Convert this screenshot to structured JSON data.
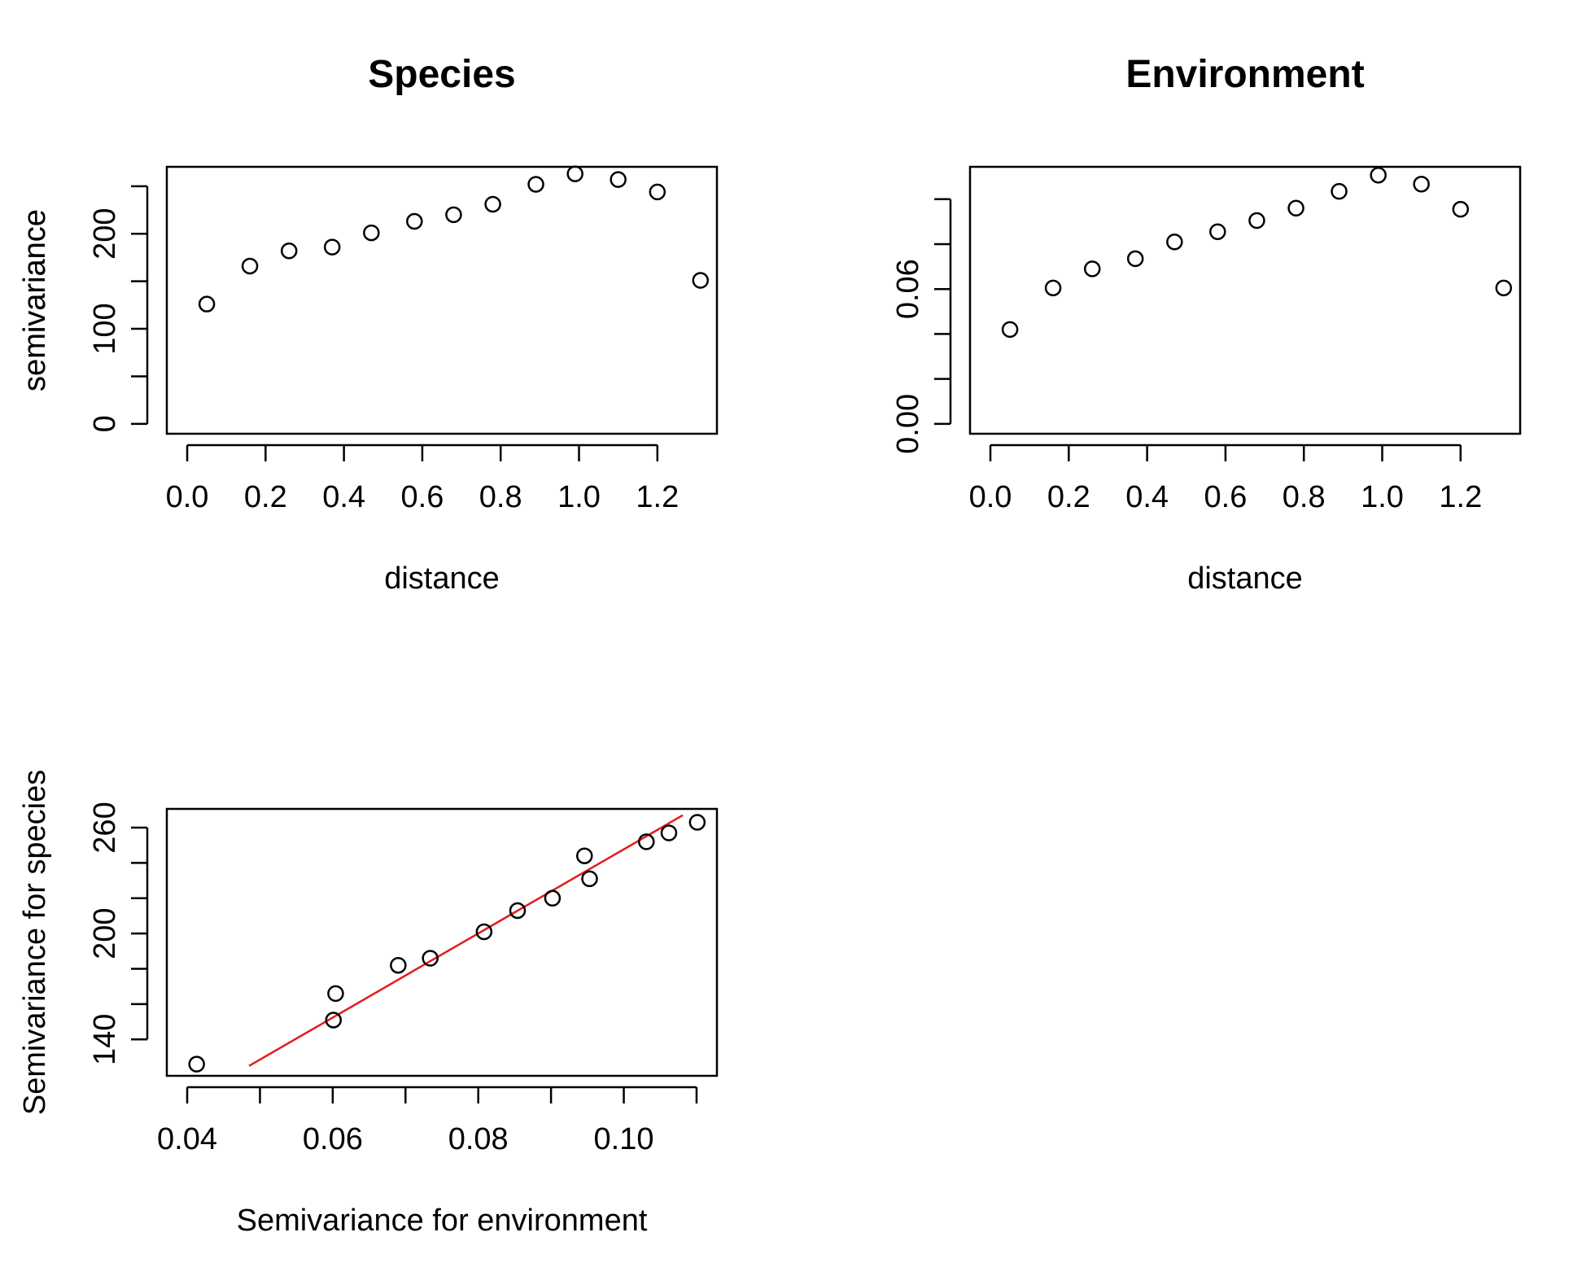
{
  "colors": {
    "ink": "#000000",
    "fit": "#e41a1c"
  },
  "chart_data": [
    {
      "id": "species",
      "type": "scatter",
      "title": "Species",
      "xlabel": "distance",
      "ylabel": "semivariance",
      "xlim": [
        0.0,
        1.3
      ],
      "ylim": [
        0,
        260
      ],
      "x_ticks": [
        0.0,
        0.2,
        0.4,
        0.6,
        0.8,
        1.0,
        1.2
      ],
      "x_tick_labels": [
        "0.0",
        "0.2",
        "0.4",
        "0.6",
        "0.8",
        "1.0",
        "1.2"
      ],
      "y_ticks": [
        0,
        50,
        100,
        150,
        200,
        250
      ],
      "y_tick_labels": [
        "0",
        "",
        "100",
        "",
        "200",
        ""
      ],
      "grid": false,
      "points": [
        {
          "x": 0.05,
          "y": 126
        },
        {
          "x": 0.16,
          "y": 166
        },
        {
          "x": 0.26,
          "y": 182
        },
        {
          "x": 0.37,
          "y": 186
        },
        {
          "x": 0.47,
          "y": 201
        },
        {
          "x": 0.58,
          "y": 213
        },
        {
          "x": 0.68,
          "y": 220
        },
        {
          "x": 0.78,
          "y": 231
        },
        {
          "x": 0.89,
          "y": 252
        },
        {
          "x": 0.99,
          "y": 263
        },
        {
          "x": 1.1,
          "y": 257
        },
        {
          "x": 1.2,
          "y": 244
        },
        {
          "x": 1.31,
          "y": 151
        }
      ]
    },
    {
      "id": "environment",
      "type": "scatter",
      "title": "Environment",
      "xlabel": "distance",
      "ylabel": "semivariance",
      "xlim": [
        0.0,
        1.3
      ],
      "ylim": [
        0.0,
        0.11
      ],
      "x_ticks": [
        0.0,
        0.2,
        0.4,
        0.6,
        0.8,
        1.0,
        1.2
      ],
      "x_tick_labels": [
        "0.0",
        "0.2",
        "0.4",
        "0.6",
        "0.8",
        "1.0",
        "1.2"
      ],
      "y_ticks": [
        0.0,
        0.02,
        0.04,
        0.06,
        0.08,
        0.1
      ],
      "y_tick_labels": [
        "0.00",
        "",
        "",
        "0.06",
        "",
        ""
      ],
      "grid": false,
      "points": [
        {
          "x": 0.05,
          "y": 0.042
        },
        {
          "x": 0.16,
          "y": 0.0605
        },
        {
          "x": 0.26,
          "y": 0.069
        },
        {
          "x": 0.37,
          "y": 0.0735
        },
        {
          "x": 0.47,
          "y": 0.081
        },
        {
          "x": 0.58,
          "y": 0.0855
        },
        {
          "x": 0.68,
          "y": 0.0905
        },
        {
          "x": 0.78,
          "y": 0.096
        },
        {
          "x": 0.89,
          "y": 0.1035
        },
        {
          "x": 0.99,
          "y": 0.1107
        },
        {
          "x": 1.1,
          "y": 0.1067
        },
        {
          "x": 1.2,
          "y": 0.0955
        },
        {
          "x": 1.31,
          "y": 0.0605
        }
      ]
    },
    {
      "id": "species-vs-environment",
      "type": "scatter",
      "title": "",
      "xlabel": "Semivariance for environment",
      "ylabel": "Semivariance for species",
      "xlim": [
        0.04,
        0.11
      ],
      "ylim": [
        125,
        265
      ],
      "x_ticks": [
        0.04,
        0.05,
        0.06,
        0.07,
        0.08,
        0.09,
        0.1,
        0.11
      ],
      "x_tick_labels": [
        "0.04",
        "",
        "0.06",
        "",
        "0.08",
        "",
        "0.10",
        ""
      ],
      "y_ticks": [
        140,
        160,
        180,
        200,
        220,
        240,
        260
      ],
      "y_tick_labels": [
        "140",
        "",
        "",
        "200",
        "",
        "",
        "260"
      ],
      "grid": false,
      "points": [
        {
          "x": 0.0413,
          "y": 126
        },
        {
          "x": 0.0601,
          "y": 151
        },
        {
          "x": 0.0604,
          "y": 166
        },
        {
          "x": 0.069,
          "y": 182
        },
        {
          "x": 0.0734,
          "y": 186
        },
        {
          "x": 0.0808,
          "y": 201
        },
        {
          "x": 0.0854,
          "y": 213
        },
        {
          "x": 0.0902,
          "y": 220
        },
        {
          "x": 0.0953,
          "y": 231
        },
        {
          "x": 0.0946,
          "y": 244
        },
        {
          "x": 0.1031,
          "y": 252
        },
        {
          "x": 0.1062,
          "y": 257
        },
        {
          "x": 0.1101,
          "y": 263
        }
      ],
      "fit_line": {
        "x": [
          0.0485,
          0.1081
        ],
        "y": [
          125,
          267
        ]
      }
    }
  ]
}
